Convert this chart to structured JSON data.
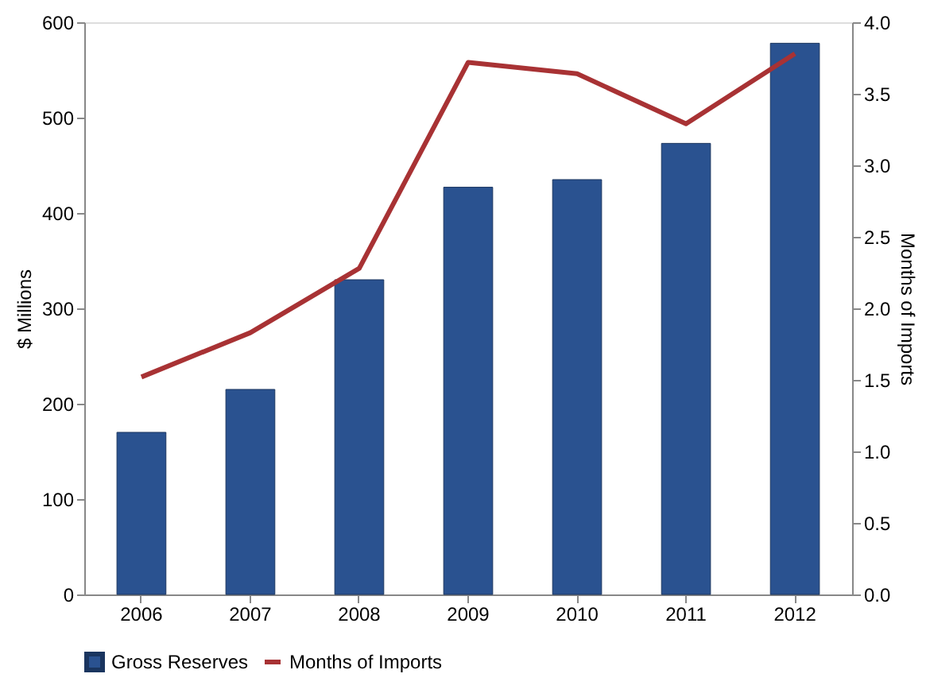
{
  "chart_data": {
    "type": "bar",
    "categories": [
      "2006",
      "2007",
      "2008",
      "2009",
      "2010",
      "2011",
      "2012"
    ],
    "ylabel": "$ Millions",
    "y2label": "Months of Imports",
    "series": [
      {
        "name": "Gross Reserves",
        "color": "#2a5290",
        "values": [
          170,
          215,
          330,
          427,
          435,
          473,
          578
        ]
      },
      {
        "name": "Months of Imports",
        "type": "line",
        "axis": "y2",
        "color": "#a83234",
        "values": [
          1.52,
          1.83,
          2.28,
          3.72,
          3.64,
          3.29,
          3.78
        ]
      }
    ],
    "ylim": [
      0,
      600
    ],
    "yticks": [
      0,
      100,
      200,
      300,
      400,
      500,
      600
    ],
    "y2lim": [
      0,
      4
    ],
    "y2ticks": [
      {
        "value": 0,
        "label": "0.0"
      },
      {
        "value": 0.5,
        "label": "0.5"
      },
      {
        "value": 1,
        "label": "1.0"
      },
      {
        "value": 1.5,
        "label": "1.5"
      },
      {
        "value": 2,
        "label": "2.0"
      },
      {
        "value": 2.5,
        "label": "2.5"
      },
      {
        "value": 3,
        "label": "3.0"
      },
      {
        "value": 3.5,
        "label": "3.5"
      },
      {
        "value": 4,
        "label": "4.0"
      }
    ],
    "grid": false,
    "legend": "bottom",
    "marker": "none",
    "line_style": "solid"
  }
}
